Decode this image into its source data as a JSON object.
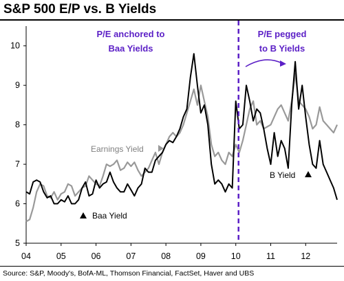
{
  "title": "S&P 500 E/P vs. B Yields",
  "source": "Source: S&P, Moody's, BofA-ML, Thomson Financial, FactSet, Haver and UBS",
  "colors": {
    "earnings_yield": "#999999",
    "bond_yield": "#000000",
    "annotation": "#5b1fc6"
  },
  "chart_data": {
    "type": "line",
    "title": "S&P 500 E/P vs. B Yields",
    "ylim": [
      5,
      10.5
    ],
    "yticks": [
      5,
      6,
      7,
      8,
      9,
      10
    ],
    "xlim": [
      2004.0,
      2012.9
    ],
    "xticks": [
      {
        "value": 2004.0,
        "label": "04"
      },
      {
        "value": 2005.0,
        "label": "05"
      },
      {
        "value": 2006.0,
        "label": "06"
      },
      {
        "value": 2007.0,
        "label": "07"
      },
      {
        "value": 2008.0,
        "label": "08"
      },
      {
        "value": 2009.0,
        "label": "09"
      },
      {
        "value": 2010.0,
        "label": "10"
      },
      {
        "value": 2011.0,
        "label": "11"
      },
      {
        "value": 2012.0,
        "label": "12"
      }
    ],
    "divider_x": 2010.0,
    "annotations": {
      "left_top": [
        "P/E anchored to",
        "Baa Yields"
      ],
      "right_top": [
        "P/E  pegged",
        "to B Yields"
      ],
      "earnings_yield_label": "Earnings Yield",
      "b_yield_label": "B Yield",
      "baa_yield_label": "Baa Yield"
    },
    "series": [
      {
        "name": "Earnings Yield",
        "color": "#999999",
        "points": [
          [
            2004.0,
            5.55
          ],
          [
            2004.1,
            5.6
          ],
          [
            2004.2,
            5.9
          ],
          [
            2004.3,
            6.3
          ],
          [
            2004.4,
            6.5
          ],
          [
            2004.5,
            6.45
          ],
          [
            2004.6,
            6.2
          ],
          [
            2004.7,
            6.15
          ],
          [
            2004.8,
            6.3
          ],
          [
            2004.9,
            6.1
          ],
          [
            2005.0,
            6.25
          ],
          [
            2005.1,
            6.3
          ],
          [
            2005.2,
            6.5
          ],
          [
            2005.3,
            6.45
          ],
          [
            2005.4,
            6.2
          ],
          [
            2005.5,
            6.3
          ],
          [
            2005.6,
            6.4
          ],
          [
            2005.7,
            6.45
          ],
          [
            2005.8,
            6.7
          ],
          [
            2005.9,
            6.6
          ],
          [
            2006.0,
            6.5
          ],
          [
            2006.1,
            6.45
          ],
          [
            2006.2,
            6.7
          ],
          [
            2006.3,
            7.0
          ],
          [
            2006.4,
            6.95
          ],
          [
            2006.5,
            7.0
          ],
          [
            2006.6,
            7.1
          ],
          [
            2006.7,
            6.85
          ],
          [
            2006.8,
            6.9
          ],
          [
            2006.9,
            7.05
          ],
          [
            2007.0,
            6.95
          ],
          [
            2007.1,
            7.05
          ],
          [
            2007.2,
            6.85
          ],
          [
            2007.3,
            6.7
          ],
          [
            2007.4,
            6.8
          ],
          [
            2007.5,
            6.9
          ],
          [
            2007.6,
            7.1
          ],
          [
            2007.7,
            7.3
          ],
          [
            2007.8,
            7.0
          ],
          [
            2007.9,
            7.3
          ],
          [
            2008.0,
            7.5
          ],
          [
            2008.1,
            7.7
          ],
          [
            2008.2,
            7.8
          ],
          [
            2008.3,
            7.7
          ],
          [
            2008.4,
            7.8
          ],
          [
            2008.5,
            8.0
          ],
          [
            2008.6,
            8.3
          ],
          [
            2008.7,
            8.6
          ],
          [
            2008.8,
            8.9
          ],
          [
            2008.9,
            8.5
          ],
          [
            2009.0,
            9.0
          ],
          [
            2009.1,
            8.6
          ],
          [
            2009.2,
            8.2
          ],
          [
            2009.3,
            7.5
          ],
          [
            2009.4,
            7.2
          ],
          [
            2009.5,
            7.3
          ],
          [
            2009.6,
            7.1
          ],
          [
            2009.7,
            7.0
          ],
          [
            2009.8,
            7.3
          ],
          [
            2009.9,
            7.2
          ],
          [
            2010.0,
            7.5
          ],
          [
            2010.1,
            7.3
          ],
          [
            2010.2,
            7.6
          ],
          [
            2010.3,
            8.0
          ],
          [
            2010.4,
            8.4
          ],
          [
            2010.5,
            8.6
          ],
          [
            2010.6,
            8.0
          ],
          [
            2010.7,
            8.1
          ],
          [
            2010.8,
            7.9
          ],
          [
            2010.9,
            7.95
          ],
          [
            2011.0,
            8.0
          ],
          [
            2011.1,
            8.2
          ],
          [
            2011.2,
            8.4
          ],
          [
            2011.3,
            8.5
          ],
          [
            2011.4,
            8.3
          ],
          [
            2011.5,
            8.1
          ],
          [
            2011.6,
            8.6
          ],
          [
            2011.7,
            9.3
          ],
          [
            2011.8,
            8.6
          ],
          [
            2011.9,
            8.5
          ],
          [
            2012.0,
            8.4
          ],
          [
            2012.1,
            8.2
          ],
          [
            2012.2,
            7.9
          ],
          [
            2012.3,
            8.0
          ],
          [
            2012.4,
            8.45
          ],
          [
            2012.5,
            8.1
          ],
          [
            2012.6,
            8.0
          ],
          [
            2012.7,
            7.9
          ],
          [
            2012.8,
            7.8
          ],
          [
            2012.9,
            8.0
          ]
        ]
      },
      {
        "name": "Baa / B Yield",
        "color": "#000000",
        "points": [
          [
            2004.0,
            6.3
          ],
          [
            2004.1,
            6.25
          ],
          [
            2004.2,
            6.55
          ],
          [
            2004.3,
            6.6
          ],
          [
            2004.4,
            6.55
          ],
          [
            2004.5,
            6.3
          ],
          [
            2004.6,
            6.15
          ],
          [
            2004.7,
            6.2
          ],
          [
            2004.8,
            6.0
          ],
          [
            2004.9,
            6.0
          ],
          [
            2005.0,
            6.1
          ],
          [
            2005.1,
            6.05
          ],
          [
            2005.2,
            6.2
          ],
          [
            2005.3,
            6.0
          ],
          [
            2005.4,
            6.0
          ],
          [
            2005.5,
            6.1
          ],
          [
            2005.6,
            6.4
          ],
          [
            2005.7,
            6.55
          ],
          [
            2005.8,
            6.2
          ],
          [
            2005.9,
            6.25
          ],
          [
            2006.0,
            6.6
          ],
          [
            2006.1,
            6.4
          ],
          [
            2006.2,
            6.5
          ],
          [
            2006.3,
            6.55
          ],
          [
            2006.4,
            6.8
          ],
          [
            2006.5,
            6.55
          ],
          [
            2006.6,
            6.4
          ],
          [
            2006.7,
            6.3
          ],
          [
            2006.8,
            6.3
          ],
          [
            2006.9,
            6.5
          ],
          [
            2007.0,
            6.35
          ],
          [
            2007.1,
            6.2
          ],
          [
            2007.2,
            6.4
          ],
          [
            2007.3,
            6.5
          ],
          [
            2007.4,
            6.9
          ],
          [
            2007.5,
            6.8
          ],
          [
            2007.6,
            6.8
          ],
          [
            2007.7,
            7.1
          ],
          [
            2007.8,
            7.2
          ],
          [
            2007.9,
            7.3
          ],
          [
            2008.0,
            7.5
          ],
          [
            2008.1,
            7.6
          ],
          [
            2008.2,
            7.55
          ],
          [
            2008.3,
            7.7
          ],
          [
            2008.4,
            7.9
          ],
          [
            2008.5,
            8.2
          ],
          [
            2008.6,
            8.4
          ],
          [
            2008.7,
            9.2
          ],
          [
            2008.8,
            9.8
          ],
          [
            2008.9,
            9.0
          ],
          [
            2009.0,
            8.3
          ],
          [
            2009.1,
            8.5
          ],
          [
            2009.2,
            8.0
          ],
          [
            2009.3,
            7.0
          ],
          [
            2009.4,
            6.5
          ],
          [
            2009.5,
            6.6
          ],
          [
            2009.6,
            6.5
          ],
          [
            2009.7,
            6.3
          ],
          [
            2009.8,
            6.5
          ],
          [
            2009.9,
            6.4
          ],
          [
            2010.0,
            8.6
          ],
          [
            2010.1,
            7.9
          ],
          [
            2010.2,
            8.0
          ],
          [
            2010.3,
            9.0
          ],
          [
            2010.4,
            8.6
          ],
          [
            2010.5,
            8.1
          ],
          [
            2010.6,
            8.4
          ],
          [
            2010.7,
            8.3
          ],
          [
            2010.8,
            7.9
          ],
          [
            2010.9,
            7.4
          ],
          [
            2011.0,
            7.0
          ],
          [
            2011.1,
            7.8
          ],
          [
            2011.2,
            7.2
          ],
          [
            2011.3,
            7.6
          ],
          [
            2011.4,
            7.4
          ],
          [
            2011.5,
            6.9
          ],
          [
            2011.6,
            8.5
          ],
          [
            2011.7,
            9.6
          ],
          [
            2011.8,
            8.4
          ],
          [
            2011.9,
            9.0
          ],
          [
            2012.0,
            8.2
          ],
          [
            2012.1,
            7.5
          ],
          [
            2012.2,
            7.0
          ],
          [
            2012.3,
            6.9
          ],
          [
            2012.4,
            7.6
          ],
          [
            2012.5,
            7.0
          ],
          [
            2012.6,
            6.8
          ],
          [
            2012.7,
            6.6
          ],
          [
            2012.8,
            6.4
          ],
          [
            2012.9,
            6.1
          ]
        ]
      }
    ]
  }
}
